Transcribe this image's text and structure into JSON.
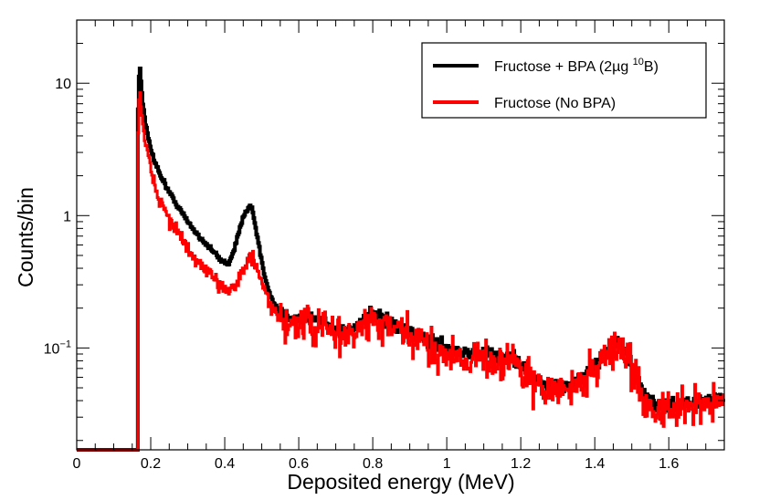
{
  "chart_data": {
    "type": "line",
    "xlabel": "Deposited energy (MeV)",
    "ylabel": "Counts/bin",
    "xlim": [
      0,
      1.75
    ],
    "ylim": [
      0.017,
      30
    ],
    "yscale": "log",
    "x_ticks": [
      {
        "value": 0,
        "label": "0"
      },
      {
        "value": 0.2,
        "label": "0.2"
      },
      {
        "value": 0.4,
        "label": "0.4"
      },
      {
        "value": 0.6,
        "label": "0.6"
      },
      {
        "value": 0.8,
        "label": "0.8"
      },
      {
        "value": 1.0,
        "label": "1"
      },
      {
        "value": 1.2,
        "label": "1.2"
      },
      {
        "value": 1.4,
        "label": "1.4"
      },
      {
        "value": 1.6,
        "label": "1.6"
      }
    ],
    "y_ticks": [
      {
        "value": 0.1,
        "base": "10",
        "exp": "−1"
      },
      {
        "value": 1,
        "base": "1",
        "exp": ""
      },
      {
        "value": 10,
        "base": "10",
        "exp": ""
      }
    ],
    "legend": {
      "position": "top-right",
      "entries": [
        {
          "series": 0,
          "parts": [
            "Fructose + BPA (2µg ",
            "10",
            "B)"
          ]
        },
        {
          "series": 1,
          "parts": [
            "Fructose (No BPA)",
            "",
            ""
          ]
        }
      ]
    },
    "series": [
      {
        "name": "Fructose + BPA (2µg 10B)",
        "color": "#000000",
        "noise": 0.03,
        "x": [
          0,
          0.165,
          0.166,
          0.17,
          0.175,
          0.185,
          0.2,
          0.22,
          0.25,
          0.28,
          0.3,
          0.33,
          0.36,
          0.39,
          0.41,
          0.43,
          0.45,
          0.465,
          0.475,
          0.49,
          0.51,
          0.53,
          0.55,
          0.58,
          0.62,
          0.66,
          0.7,
          0.73,
          0.76,
          0.79,
          0.81,
          0.84,
          0.87,
          0.9,
          0.95,
          1.0,
          1.05,
          1.1,
          1.15,
          1.18,
          1.21,
          1.24,
          1.3,
          1.35,
          1.4,
          1.44,
          1.47,
          1.49,
          1.51,
          1.53,
          1.56,
          1.6,
          1.65,
          1.7,
          1.75
        ],
        "y": [
          0.017,
          0.017,
          6,
          15,
          9,
          5,
          3.2,
          2.2,
          1.5,
          1.1,
          0.9,
          0.7,
          0.57,
          0.46,
          0.43,
          0.6,
          1.0,
          1.18,
          1.1,
          0.65,
          0.32,
          0.22,
          0.18,
          0.17,
          0.17,
          0.16,
          0.14,
          0.13,
          0.15,
          0.18,
          0.175,
          0.155,
          0.14,
          0.13,
          0.115,
          0.1,
          0.092,
          0.09,
          0.088,
          0.085,
          0.07,
          0.055,
          0.05,
          0.055,
          0.075,
          0.1,
          0.11,
          0.09,
          0.06,
          0.047,
          0.038,
          0.036,
          0.038,
          0.04,
          0.042
        ]
      },
      {
        "name": "Fructose (No BPA)",
        "color": "#ff0000",
        "noise": 0.09,
        "x": [
          0,
          0.165,
          0.166,
          0.17,
          0.175,
          0.185,
          0.2,
          0.22,
          0.25,
          0.28,
          0.3,
          0.33,
          0.36,
          0.39,
          0.41,
          0.43,
          0.45,
          0.465,
          0.475,
          0.49,
          0.51,
          0.53,
          0.55,
          0.58,
          0.62,
          0.66,
          0.7,
          0.73,
          0.76,
          0.79,
          0.81,
          0.84,
          0.87,
          0.9,
          0.95,
          1.0,
          1.05,
          1.1,
          1.15,
          1.18,
          1.21,
          1.24,
          1.3,
          1.35,
          1.4,
          1.44,
          1.47,
          1.49,
          1.51,
          1.53,
          1.56,
          1.6,
          1.65,
          1.7,
          1.75
        ],
        "y": [
          0.017,
          0.017,
          4,
          10,
          6,
          3.5,
          2.2,
          1.4,
          0.95,
          0.7,
          0.55,
          0.43,
          0.35,
          0.3,
          0.28,
          0.3,
          0.38,
          0.48,
          0.47,
          0.38,
          0.25,
          0.19,
          0.16,
          0.155,
          0.15,
          0.14,
          0.13,
          0.12,
          0.135,
          0.155,
          0.15,
          0.14,
          0.13,
          0.12,
          0.1,
          0.09,
          0.085,
          0.082,
          0.08,
          0.08,
          0.065,
          0.05,
          0.047,
          0.05,
          0.07,
          0.095,
          0.1,
          0.085,
          0.055,
          0.042,
          0.034,
          0.032,
          0.035,
          0.038,
          0.04
        ]
      }
    ]
  }
}
